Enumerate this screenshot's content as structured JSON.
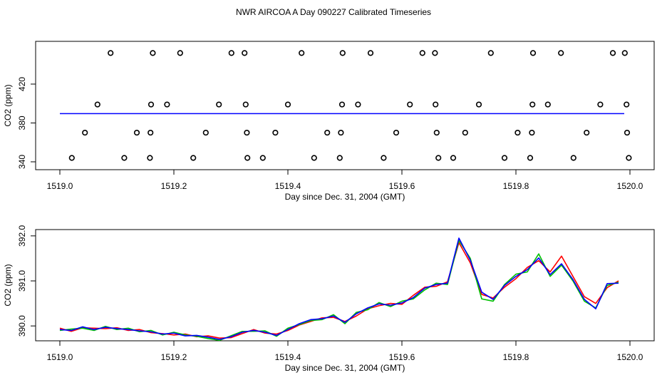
{
  "chart_data": [
    {
      "type": "scatter",
      "title": "NWR AIRCOA A  Day 090227  Calibrated Timeseries",
      "x_label": "Day since Dec. 31, 2004 (GMT)",
      "y_label": "CO2 (ppm)",
      "xlim": [
        1518.9575,
        1520.0425
      ],
      "ylim": [
        331.9,
        464.0
      ],
      "xticks": [
        {
          "value": 1519.0,
          "label": "1519.0"
        },
        {
          "value": 1519.2,
          "label": "1519.2"
        },
        {
          "value": 1519.4,
          "label": "1519.4"
        },
        {
          "value": 1519.6,
          "label": "1519.6"
        },
        {
          "value": 1519.8,
          "label": "1519.8"
        },
        {
          "value": 1520.0,
          "label": "1520.0"
        }
      ],
      "yticks": [
        340,
        380,
        420
      ],
      "series": [
        {
          "marker": "circle",
          "color": "#000000",
          "x": [
            1519.089,
            1519.163,
            1519.211,
            1519.301,
            1519.324,
            1519.424,
            1519.496,
            1519.545,
            1519.636,
            1519.658,
            1519.756,
            1519.83,
            1519.879,
            1519.97,
            1519.991,
            1519.066,
            1519.16,
            1519.188,
            1519.279,
            1519.326,
            1519.4,
            1519.495,
            1519.523,
            1519.614,
            1519.659,
            1519.735,
            1519.829,
            1519.856,
            1519.948,
            1519.994,
            1519.044,
            1519.135,
            1519.159,
            1519.256,
            1519.328,
            1519.378,
            1519.469,
            1519.493,
            1519.59,
            1519.661,
            1519.711,
            1519.803,
            1519.828,
            1519.924,
            1519.995,
            1519.021,
            1519.113,
            1519.158,
            1519.234,
            1519.329,
            1519.356,
            1519.446,
            1519.491,
            1519.568,
            1519.664,
            1519.69,
            1519.78,
            1519.825,
            1519.901,
            1519.998
          ],
          "values": [
            452,
            452,
            452,
            452,
            452,
            452,
            452,
            452,
            452,
            452,
            452,
            452,
            452,
            452,
            452,
            399,
            399,
            399,
            399,
            399,
            399,
            399,
            399,
            399,
            399,
            399,
            399,
            399,
            399,
            399,
            370,
            370,
            370,
            370,
            370,
            370,
            370,
            370,
            370,
            370,
            370,
            370,
            370,
            370,
            370,
            344,
            344,
            344,
            344,
            344,
            344,
            344,
            344,
            344,
            344,
            344,
            344,
            344,
            344,
            344
          ]
        },
        {
          "line": true,
          "color": "#0000ff",
          "x": [
            1519.0,
            1519.99
          ],
          "values": [
            389.6,
            389.6
          ]
        }
      ]
    },
    {
      "type": "line",
      "x_label": "Day since Dec. 31, 2004 (GMT)",
      "y_label": "CO2 (ppm)",
      "xlim": [
        1518.9575,
        1520.0425
      ],
      "ylim": [
        389.67,
        392.14
      ],
      "xticks": [
        {
          "value": 1519.0,
          "label": "1519.0"
        },
        {
          "value": 1519.2,
          "label": "1519.2"
        },
        {
          "value": 1519.4,
          "label": "1519.4"
        },
        {
          "value": 1519.6,
          "label": "1519.6"
        },
        {
          "value": 1519.8,
          "label": "1519.8"
        },
        {
          "value": 1520.0,
          "label": "1520.0"
        }
      ],
      "yticks": [
        {
          "value": 390,
          "label": "390.0"
        },
        {
          "value": 391,
          "label": "391.0"
        },
        {
          "value": 392,
          "label": "392.0"
        }
      ],
      "x": [
        1519.0,
        1519.02,
        1519.04,
        1519.06,
        1519.08,
        1519.1,
        1519.12,
        1519.14,
        1519.16,
        1519.18,
        1519.2,
        1519.22,
        1519.24,
        1519.26,
        1519.28,
        1519.3,
        1519.32,
        1519.34,
        1519.36,
        1519.38,
        1519.4,
        1519.42,
        1519.44,
        1519.46,
        1519.48,
        1519.5,
        1519.52,
        1519.54,
        1519.56,
        1519.58,
        1519.6,
        1519.62,
        1519.64,
        1519.66,
        1519.68,
        1519.7,
        1519.72,
        1519.74,
        1519.76,
        1519.78,
        1519.8,
        1519.82,
        1519.84,
        1519.86,
        1519.88,
        1519.9,
        1519.92,
        1519.94,
        1519.96,
        1519.98
      ],
      "series": [
        {
          "color": "#ff0000",
          "values": [
            389.95,
            389.88,
            389.96,
            389.95,
            389.94,
            389.96,
            389.9,
            389.92,
            389.85,
            389.83,
            389.8,
            389.82,
            389.76,
            389.78,
            389.73,
            389.74,
            389.83,
            389.92,
            389.84,
            389.82,
            389.9,
            390.02,
            390.1,
            390.18,
            390.19,
            390.1,
            390.22,
            390.38,
            390.45,
            390.5,
            390.48,
            390.68,
            390.86,
            390.88,
            390.98,
            391.85,
            391.4,
            390.7,
            390.62,
            390.86,
            391.05,
            391.3,
            391.45,
            391.2,
            391.55,
            391.1,
            390.65,
            390.5,
            390.85,
            391.0
          ]
        },
        {
          "color": "#00c000",
          "values": [
            389.9,
            389.93,
            389.95,
            389.9,
            389.99,
            389.92,
            389.95,
            389.87,
            389.9,
            389.8,
            389.86,
            389.8,
            389.77,
            389.72,
            389.68,
            389.78,
            389.88,
            389.88,
            389.89,
            389.77,
            389.95,
            390.03,
            390.12,
            390.14,
            390.25,
            390.05,
            390.3,
            390.36,
            390.52,
            390.43,
            390.55,
            390.6,
            390.8,
            390.95,
            390.92,
            391.9,
            391.5,
            390.6,
            390.55,
            390.92,
            391.15,
            391.2,
            391.6,
            391.1,
            391.35,
            391.0,
            390.55,
            390.4,
            390.9,
            390.97
          ]
        },
        {
          "color": "#0000ff",
          "values": [
            389.92,
            389.9,
            389.98,
            389.92,
            389.97,
            389.94,
            389.92,
            389.89,
            389.87,
            389.82,
            389.84,
            389.78,
            389.79,
            389.75,
            389.7,
            389.76,
            389.86,
            389.9,
            389.86,
            389.79,
            389.92,
            390.05,
            390.14,
            390.16,
            390.22,
            390.08,
            390.27,
            390.4,
            390.49,
            390.46,
            390.51,
            390.63,
            390.84,
            390.92,
            390.95,
            391.95,
            391.46,
            390.75,
            390.59,
            390.9,
            391.1,
            391.25,
            391.51,
            391.14,
            391.38,
            391.03,
            390.59,
            390.38,
            390.94,
            390.95
          ]
        }
      ]
    }
  ]
}
